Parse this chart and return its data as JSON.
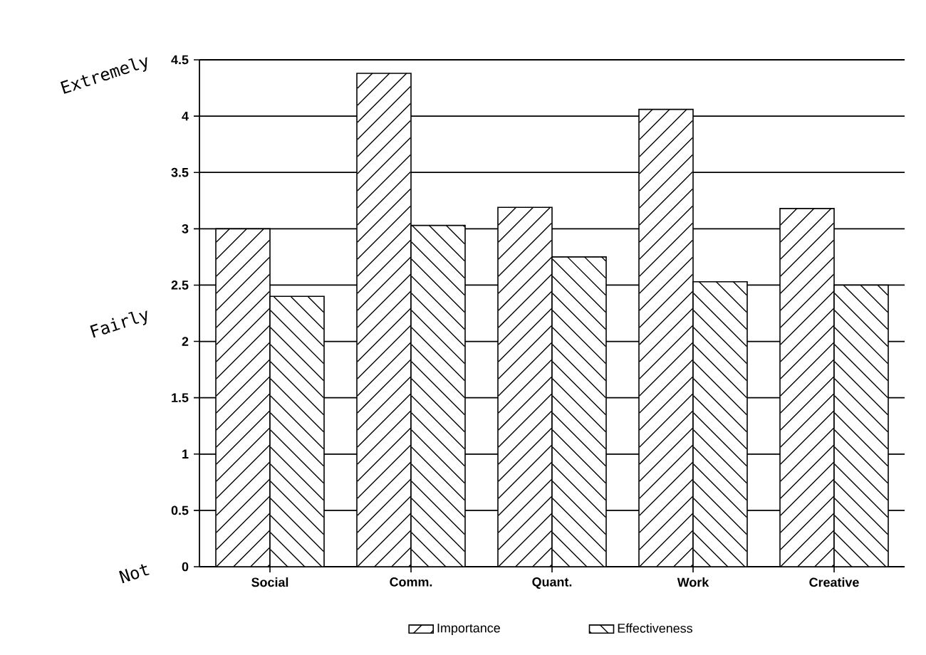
{
  "chart_data": {
    "type": "bar",
    "categories": [
      "Social",
      "Comm.",
      "Quant.",
      "Work",
      "Creative"
    ],
    "series": [
      {
        "name": "Importance",
        "color": "#000000",
        "values": [
          3.0,
          4.38,
          3.19,
          4.06,
          3.18
        ]
      },
      {
        "name": "Effectiveness",
        "color": "#000000",
        "values": [
          2.4,
          3.03,
          2.75,
          2.53,
          2.5
        ]
      }
    ],
    "ylim": [
      0,
      4.5
    ],
    "yticks": [
      0,
      0.5,
      1,
      1.5,
      2,
      2.5,
      3,
      3.5,
      4,
      4.5
    ],
    "grid": "y",
    "legend": "bottom",
    "annotations": [
      "Extremely",
      "Fairly",
      "Not"
    ]
  }
}
